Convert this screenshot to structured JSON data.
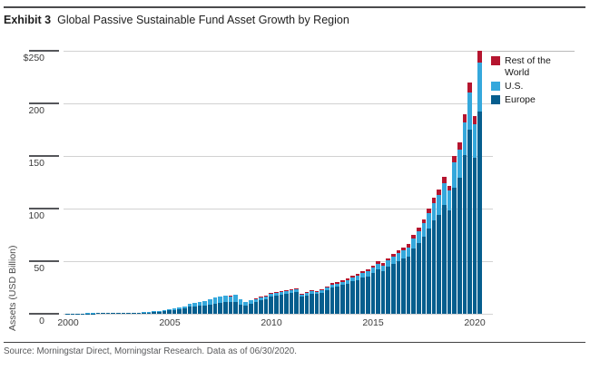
{
  "header": {
    "exhibit_label": "Exhibit 3",
    "title": "Global Passive Sustainable Fund Asset Growth by Region"
  },
  "footer": {
    "source_text": "Source: Morningstar Direct, Morningstar Research. Data as of 06/30/2020."
  },
  "chart_data": {
    "type": "bar",
    "stacked": true,
    "title": "Global Passive Sustainable Fund Asset Growth by Region",
    "ylabel": "Assets (USD Billion)",
    "xlabel": "",
    "ylim": [
      0,
      250
    ],
    "grid": true,
    "legend_position": "top-right",
    "frequency": "quarterly",
    "x": [
      "2000 Q1",
      "2000 Q2",
      "2000 Q3",
      "2000 Q4",
      "2001 Q1",
      "2001 Q2",
      "2001 Q3",
      "2001 Q4",
      "2002 Q1",
      "2002 Q2",
      "2002 Q3",
      "2002 Q4",
      "2003 Q1",
      "2003 Q2",
      "2003 Q3",
      "2003 Q4",
      "2004 Q1",
      "2004 Q2",
      "2004 Q3",
      "2004 Q4",
      "2005 Q1",
      "2005 Q2",
      "2005 Q3",
      "2005 Q4",
      "2006 Q1",
      "2006 Q2",
      "2006 Q3",
      "2006 Q4",
      "2007 Q1",
      "2007 Q2",
      "2007 Q3",
      "2007 Q4",
      "2008 Q1",
      "2008 Q2",
      "2008 Q3",
      "2008 Q4",
      "2009 Q1",
      "2009 Q2",
      "2009 Q3",
      "2009 Q4",
      "2010 Q1",
      "2010 Q2",
      "2010 Q3",
      "2010 Q4",
      "2011 Q1",
      "2011 Q2",
      "2011 Q3",
      "2011 Q4",
      "2012 Q1",
      "2012 Q2",
      "2012 Q3",
      "2012 Q4",
      "2013 Q1",
      "2013 Q2",
      "2013 Q3",
      "2013 Q4",
      "2014 Q1",
      "2014 Q2",
      "2014 Q3",
      "2014 Q4",
      "2015 Q1",
      "2015 Q2",
      "2015 Q3",
      "2015 Q4",
      "2016 Q1",
      "2016 Q2",
      "2016 Q3",
      "2016 Q4",
      "2017 Q1",
      "2017 Q2",
      "2017 Q3",
      "2017 Q4",
      "2018 Q1",
      "2018 Q2",
      "2018 Q3",
      "2018 Q4",
      "2019 Q1",
      "2019 Q2",
      "2019 Q3",
      "2019 Q4",
      "2020 Q1",
      "2020 Q2"
    ],
    "yticks": [
      {
        "value": 0,
        "label": "0"
      },
      {
        "value": 50,
        "label": "50"
      },
      {
        "value": 100,
        "label": "100"
      },
      {
        "value": 150,
        "label": "150"
      },
      {
        "value": 200,
        "label": "200"
      },
      {
        "value": 250,
        "label": "$250"
      }
    ],
    "xticks": [
      {
        "index": 0,
        "label": "2000"
      },
      {
        "index": 20,
        "label": "2005"
      },
      {
        "index": 40,
        "label": "2010"
      },
      {
        "index": 60,
        "label": "2015"
      },
      {
        "index": 80,
        "label": "2020"
      }
    ],
    "series": [
      {
        "name": "Europe",
        "color": "#065e8e",
        "values": [
          0.2,
          0.2,
          0.3,
          0.3,
          0.4,
          0.4,
          0.5,
          0.5,
          0.5,
          0.5,
          0.6,
          0.7,
          0.7,
          0.8,
          0.9,
          1.0,
          1.3,
          1.6,
          2.0,
          2.4,
          3.1,
          3.8,
          4.5,
          5.2,
          6.5,
          7.1,
          7.5,
          8.1,
          8.9,
          9.8,
          10.6,
          11.0,
          10.8,
          11.4,
          9.0,
          7.5,
          9.6,
          11.0,
          13.1,
          14.2,
          16.3,
          17.2,
          18.1,
          19.0,
          19.8,
          20.7,
          16.0,
          17.4,
          19.1,
          18.7,
          19.9,
          22.4,
          24.9,
          25.7,
          27.3,
          28.5,
          30.9,
          32.1,
          34.4,
          35.6,
          38.8,
          42.0,
          40.4,
          44.5,
          47.5,
          49.9,
          52.2,
          54.5,
          61.8,
          67.0,
          73.2,
          80.8,
          88.5,
          94.0,
          103.5,
          98.0,
          120,
          129,
          151,
          175,
          148,
          192
        ]
      },
      {
        "name": "U.S.",
        "color": "#35a8dc",
        "values": [
          0.1,
          0.1,
          0.1,
          0.1,
          0.1,
          0.1,
          0.1,
          0.1,
          0.2,
          0.2,
          0.2,
          0.2,
          0.3,
          0.3,
          0.4,
          0.5,
          0.5,
          0.6,
          0.8,
          0.9,
          1.1,
          1.4,
          1.7,
          2.0,
          3.0,
          3.4,
          3.7,
          4.2,
          4.8,
          5.5,
          6.0,
          6.3,
          6.0,
          6.4,
          4.8,
          3.8,
          3.0,
          3.0,
          2.8,
          2.6,
          2.5,
          2.5,
          2.4,
          2.4,
          2.4,
          2.5,
          2.0,
          2.1,
          2.2,
          2.1,
          2.2,
          2.5,
          2.8,
          3.0,
          3.2,
          3.4,
          3.8,
          4.0,
          4.4,
          4.6,
          5.2,
          5.8,
          5.5,
          6.2,
          7.0,
          7.5,
          8.0,
          8.5,
          10.0,
          11.5,
          13.0,
          15.0,
          17.0,
          19.0,
          21.0,
          19.0,
          24,
          27,
          31,
          35,
          32,
          47
        ]
      },
      {
        "name": "Rest of the World",
        "color": "#b5152f",
        "values": [
          0,
          0,
          0,
          0,
          0,
          0,
          0,
          0,
          0,
          0,
          0,
          0,
          0,
          0,
          0,
          0,
          0,
          0,
          0,
          0,
          0,
          0,
          0,
          0,
          0,
          0,
          0,
          0,
          0.1,
          0.2,
          0.2,
          0.2,
          0.2,
          0.2,
          0.2,
          0.2,
          0.4,
          0.5,
          0.6,
          0.7,
          0.7,
          0.8,
          0.8,
          0.9,
          1.0,
          1.0,
          1.0,
          1.0,
          1.1,
          1.1,
          1.2,
          1.3,
          1.4,
          1.4,
          1.5,
          1.5,
          1.6,
          1.7,
          1.8,
          1.9,
          2.0,
          2.2,
          2.1,
          2.3,
          2.5,
          2.6,
          2.8,
          3.0,
          3.2,
          3.5,
          3.8,
          4.2,
          4.5,
          5.0,
          5.5,
          5.0,
          6,
          7,
          8,
          10,
          8,
          11
        ]
      }
    ]
  }
}
